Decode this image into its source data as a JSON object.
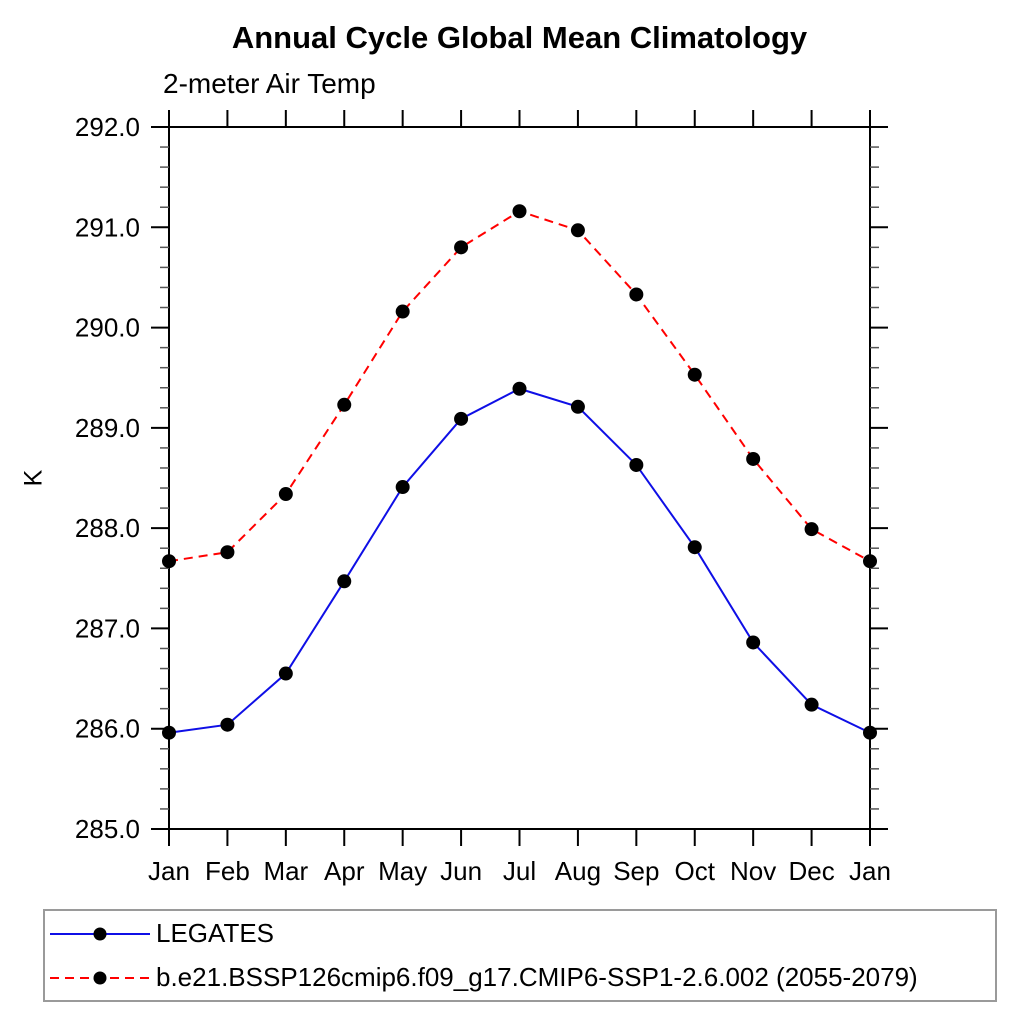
{
  "chart_data": {
    "type": "line",
    "title": "Annual Cycle Global Mean Climatology",
    "subtitle": "2-meter Air Temp",
    "ylabel": "K",
    "xlabel": "",
    "categories": [
      "Jan",
      "Feb",
      "Mar",
      "Apr",
      "May",
      "Jun",
      "Jul",
      "Aug",
      "Sep",
      "Oct",
      "Nov",
      "Dec",
      "Jan"
    ],
    "ylim": [
      285.0,
      292.0
    ],
    "ytick_step": 1.0,
    "ytick_minor_step": 0.2,
    "ytick_label_format_decimals": 1,
    "grid": false,
    "legend_position": "bottom",
    "series": [
      {
        "name": "LEGATES",
        "color": "#0f0fe6",
        "line_style": "solid",
        "marker": "filled-circle",
        "marker_color": "#000000",
        "values": [
          285.96,
          286.04,
          286.55,
          287.47,
          288.41,
          289.09,
          289.39,
          289.21,
          288.63,
          287.81,
          286.86,
          286.24,
          285.96
        ]
      },
      {
        "name": "b.e21.BSSP126cmip6.f09_g17.CMIP6-SSP1-2.6.002 (2055-2079)",
        "color": "#ff0000",
        "line_style": "dashed",
        "marker": "filled-circle",
        "marker_color": "#000000",
        "values": [
          287.67,
          287.76,
          288.34,
          289.23,
          290.16,
          290.8,
          291.16,
          290.97,
          290.33,
          289.53,
          288.69,
          287.99,
          287.67
        ]
      }
    ],
    "colors": {
      "axis": "#000000",
      "tick_labels": "#000000",
      "legend_border": "#9a9a9a",
      "background": "#ffffff"
    }
  }
}
